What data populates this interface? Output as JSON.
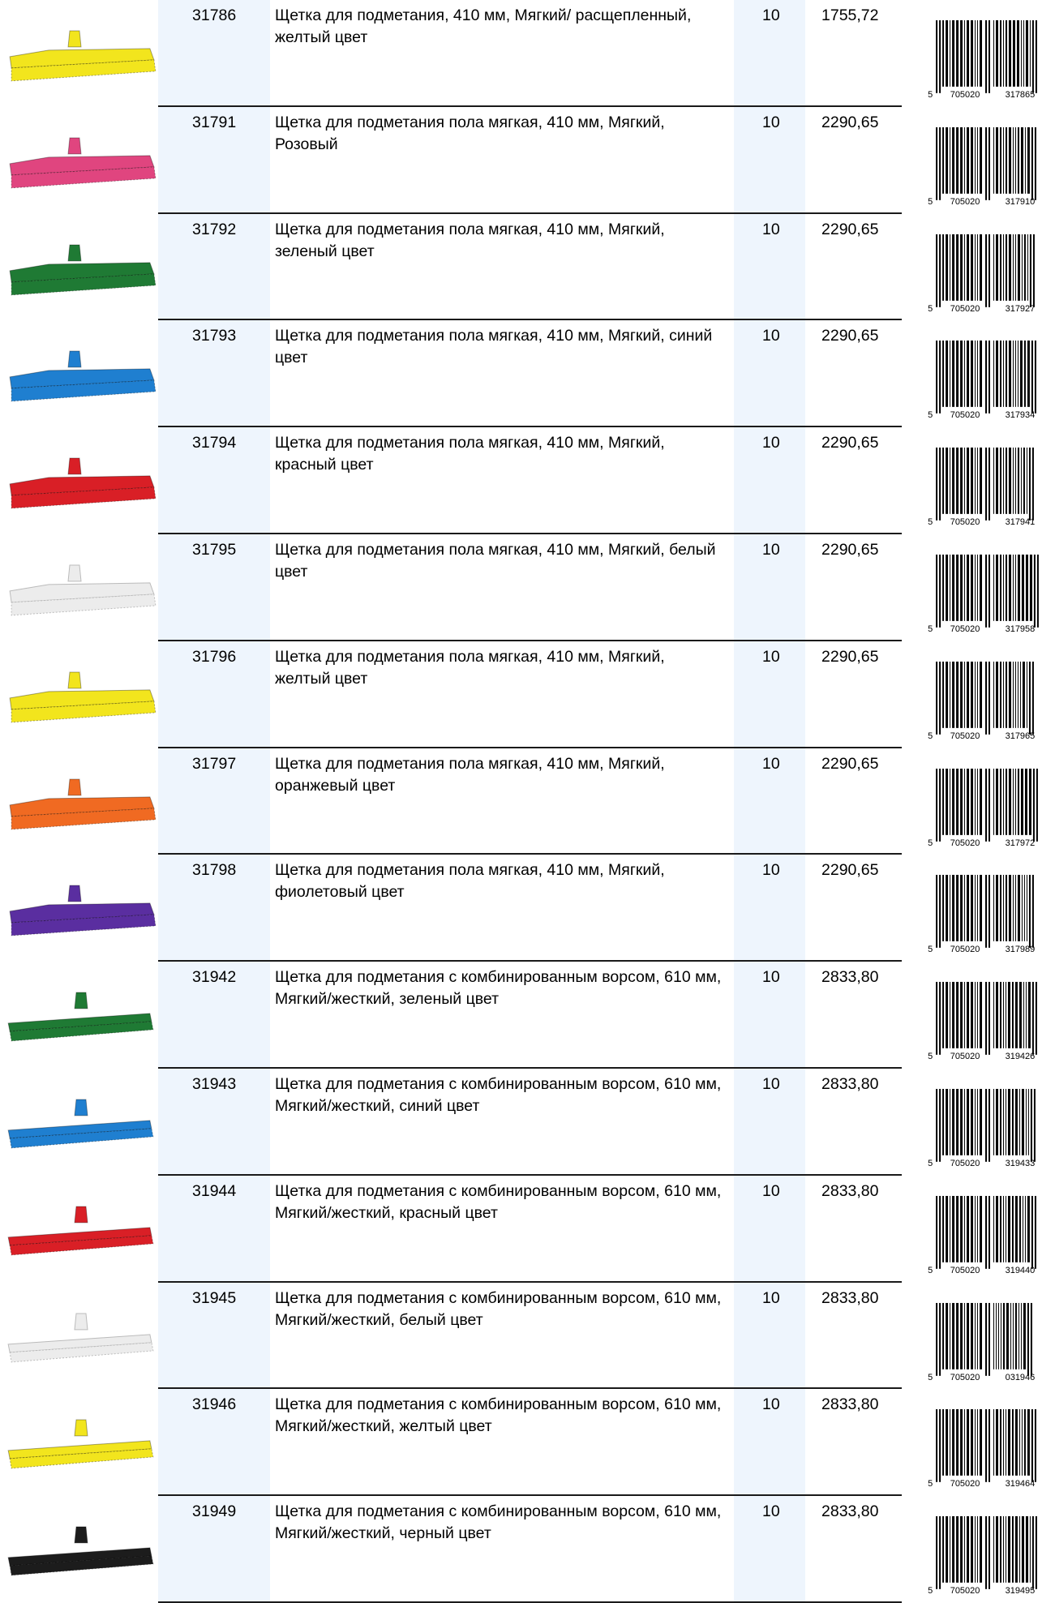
{
  "rows": [
    {
      "code": "31786",
      "description": "Щетка для подметания, 410 мм, Мягкий/ расщепленный, желтый цвет",
      "qty": "10",
      "price": "1755,72",
      "color": "#f2e51d",
      "barcode": {
        "first": "5",
        "left": "705020",
        "right": "317865"
      }
    },
    {
      "code": "31791",
      "description": "Щетка для подметания пола мягкая, 410 мм, Мягкий, Розовый",
      "qty": "10",
      "price": "2290,65",
      "color": "#e0457f",
      "barcode": {
        "first": "5",
        "left": "705020",
        "right": "317910"
      }
    },
    {
      "code": "31792",
      "description": "Щетка для подметания пола мягкая, 410 мм, Мягкий, зеленый цвет",
      "qty": "10",
      "price": "2290,65",
      "color": "#1f7a34",
      "barcode": {
        "first": "5",
        "left": "705020",
        "right": "317927"
      }
    },
    {
      "code": "31793",
      "description": "Щетка для подметания пола мягкая, 410 мм, Мягкий, синий цвет",
      "qty": "10",
      "price": "2290,65",
      "color": "#1f7fd0",
      "barcode": {
        "first": "5",
        "left": "705020",
        "right": "317934"
      }
    },
    {
      "code": "31794",
      "description": "Щетка для подметания пола мягкая, 410 мм, Мягкий, красный цвет",
      "qty": "10",
      "price": "2290,65",
      "color": "#d91f26",
      "barcode": {
        "first": "5",
        "left": "705020",
        "right": "317941"
      }
    },
    {
      "code": "31795",
      "description": "Щетка для подметания пола мягкая, 410 мм, Мягкий, белый цвет",
      "qty": "10",
      "price": "2290,65",
      "color": "#ececec",
      "barcode": {
        "first": "5",
        "left": "705020",
        "right": "317958"
      }
    },
    {
      "code": "31796",
      "description": "Щетка для подметания пола мягкая, 410 мм, Мягкий, желтый цвет",
      "qty": "10",
      "price": "2290,65",
      "color": "#f2e51d",
      "barcode": {
        "first": "5",
        "left": "705020",
        "right": "317965"
      }
    },
    {
      "code": "31797",
      "description": "Щетка для подметания пола мягкая, 410 мм, Мягкий, оранжевый цвет",
      "qty": "10",
      "price": "2290,65",
      "color": "#f06a22",
      "barcode": {
        "first": "5",
        "left": "705020",
        "right": "317972"
      }
    },
    {
      "code": "31798",
      "description": "Щетка для подметания пола мягкая, 410 мм, Мягкий, фиолетовый цвет",
      "qty": "10",
      "price": "2290,65",
      "color": "#5a2ea0",
      "barcode": {
        "first": "5",
        "left": "705020",
        "right": "317989"
      }
    },
    {
      "code": "31942",
      "description": "Щетка  для подметания с комбинированным ворсом, 610 мм, Мягкий/жесткий, зеленый цвет",
      "qty": "10",
      "price": "2833,80",
      "color": "#1f7a34",
      "barcode": {
        "first": "5",
        "left": "705020",
        "right": "319426"
      }
    },
    {
      "code": "31943",
      "description": "Щетка  для подметания с комбинированным ворсом, 610 мм, Мягкий/жесткий, синий цвет",
      "qty": "10",
      "price": "2833,80",
      "color": "#1f7fd0",
      "barcode": {
        "first": "5",
        "left": "705020",
        "right": "319433"
      }
    },
    {
      "code": "31944",
      "description": "Щетка  для подметания с комбинированным ворсом, 610 мм, Мягкий/жесткий, красный цвет",
      "qty": "10",
      "price": "2833,80",
      "color": "#d91f26",
      "barcode": {
        "first": "5",
        "left": "705020",
        "right": "319440"
      }
    },
    {
      "code": "31945",
      "description": "Щетка  для подметания с комбинированным ворсом, 610 мм, Мягкий/жесткий, белый цвет",
      "qty": "10",
      "price": "2833,80",
      "color": "#ececec",
      "barcode": {
        "first": "5",
        "left": "705020",
        "right": "031946"
      }
    },
    {
      "code": "31946",
      "description": "Щетка  для подметания с комбинированным ворсом, 610 мм, Мягкий/жесткий, желтый цвет",
      "qty": "10",
      "price": "2833,80",
      "color": "#f2e51d",
      "barcode": {
        "first": "5",
        "left": "705020",
        "right": "319464"
      }
    },
    {
      "code": "31949",
      "description": "Щетка  для подметания с комбинированным ворсом, 610 мм, Мягкий/жесткий, черный цвет",
      "qty": "10",
      "price": "2833,80",
      "color": "#1c1c1c",
      "barcode": {
        "first": "5",
        "left": "705020",
        "right": "319495"
      }
    }
  ]
}
